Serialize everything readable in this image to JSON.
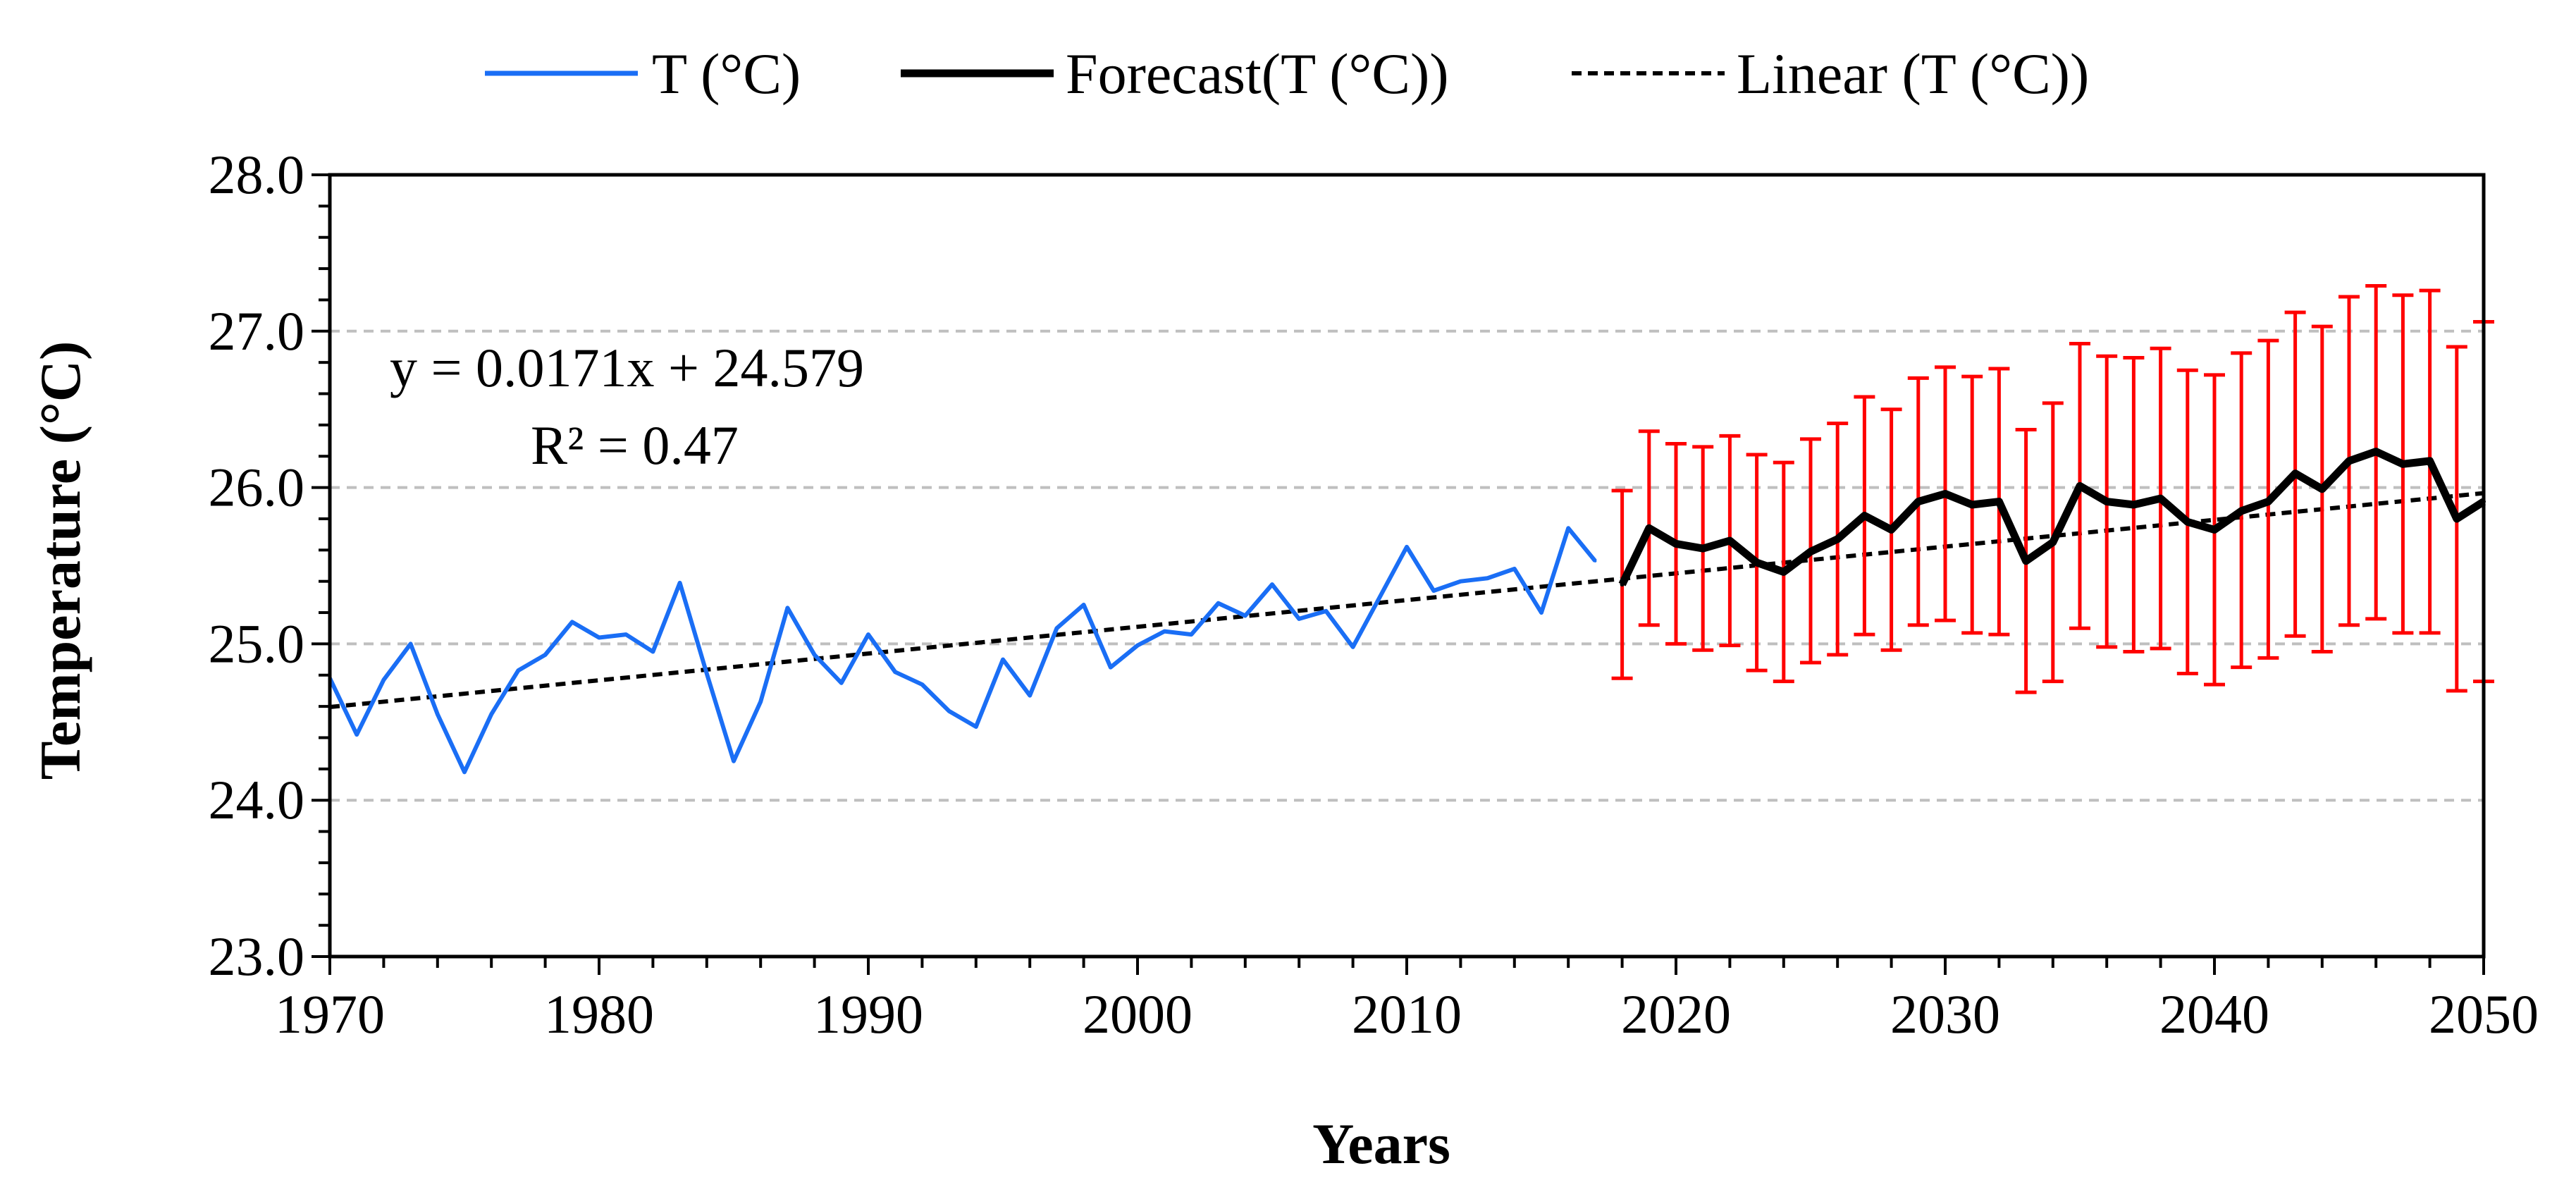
{
  "chart_data": {
    "type": "line",
    "title": "",
    "xlabel": "Years",
    "ylabel": "Temperature  (°C)",
    "xlim": [
      1970,
      2050
    ],
    "ylim": [
      23.0,
      28.0
    ],
    "x_ticks": [
      1970,
      1980,
      1990,
      2000,
      2010,
      2020,
      2030,
      2040,
      2050
    ],
    "x_tick_labels": [
      "1970",
      "1980",
      "1990",
      "2000",
      "2010",
      "2020",
      "2030",
      "2040",
      "2050"
    ],
    "y_ticks": [
      23.0,
      24.0,
      25.0,
      26.0,
      27.0,
      28.0
    ],
    "y_tick_labels": [
      "23.0",
      "24.0",
      "25.0",
      "26.0",
      "27.0",
      "28.0"
    ],
    "gridlines_y": [
      24.0,
      25.0,
      26.0,
      27.0
    ],
    "legend": {
      "position": "top-center",
      "entries": [
        "T (°C)",
        "Forecast(T (°C))",
        "Linear (T (°C))"
      ]
    },
    "annotations": {
      "equation": "y = 0.0171x + 24.579",
      "r_squared": "R² = 0.47"
    },
    "colors": {
      "observed": "#1a6ef5",
      "forecast": "#000000",
      "trend": "#000000",
      "error_bars": "#ff0000",
      "grid": "#bfbfbf"
    },
    "series": [
      {
        "name": "T (°C)",
        "style": "solid-blue",
        "x": [
          1970,
          1971,
          1972,
          1973,
          1974,
          1975,
          1976,
          1977,
          1978,
          1979,
          1980,
          1981,
          1982,
          1983,
          1984,
          1985,
          1986,
          1987,
          1988,
          1989,
          1990,
          1991,
          1992,
          1993,
          1994,
          1995,
          1996,
          1997,
          1998,
          1999,
          2000,
          2001,
          2002,
          2003,
          2004,
          2005,
          2006,
          2007,
          2008,
          2009,
          2010,
          2011,
          2012,
          2013,
          2014,
          2015,
          2016,
          2017
        ],
        "values": [
          24.78,
          24.42,
          24.77,
          25.0,
          24.55,
          24.18,
          24.55,
          24.83,
          24.93,
          25.14,
          25.04,
          25.06,
          24.95,
          25.39,
          24.81,
          24.25,
          24.63,
          25.23,
          24.93,
          24.75,
          25.06,
          24.82,
          24.74,
          24.57,
          24.47,
          24.9,
          24.67,
          25.1,
          25.25,
          24.85,
          24.99,
          25.08,
          25.06,
          25.26,
          25.18,
          25.38,
          25.16,
          25.21,
          24.98,
          25.3,
          25.62,
          25.34,
          25.4,
          25.42,
          25.48,
          25.2,
          25.74,
          25.53
        ]
      },
      {
        "name": "Forecast(T (°C))",
        "style": "solid-black-thick",
        "x": [
          2018,
          2019,
          2020,
          2021,
          2022,
          2023,
          2024,
          2025,
          2026,
          2027,
          2028,
          2029,
          2030,
          2031,
          2032,
          2033,
          2034,
          2035,
          2036,
          2037,
          2038,
          2039,
          2040,
          2041,
          2042,
          2043,
          2044,
          2045,
          2046,
          2047,
          2048,
          2049,
          2050
        ],
        "values": [
          25.38,
          25.74,
          25.64,
          25.61,
          25.66,
          25.52,
          25.46,
          25.59,
          25.67,
          25.82,
          25.73,
          25.91,
          25.96,
          25.89,
          25.91,
          25.53,
          25.65,
          26.01,
          25.91,
          25.89,
          25.93,
          25.78,
          25.73,
          25.85,
          25.91,
          26.09,
          25.99,
          26.17,
          26.23,
          26.15,
          26.17,
          25.8,
          25.91
        ],
        "error_bar_lower": [
          24.78,
          25.12,
          25.0,
          24.96,
          24.99,
          24.83,
          24.76,
          24.88,
          24.93,
          25.06,
          24.96,
          25.12,
          25.15,
          25.07,
          25.06,
          24.69,
          24.76,
          25.1,
          24.98,
          24.95,
          24.97,
          24.81,
          24.74,
          24.85,
          24.91,
          25.05,
          24.95,
          25.12,
          25.16,
          25.07,
          25.07,
          24.7,
          24.76
        ],
        "error_bar_upper": [
          25.98,
          26.36,
          26.28,
          26.26,
          26.33,
          26.21,
          26.16,
          26.31,
          26.41,
          26.58,
          26.5,
          26.7,
          26.77,
          26.71,
          26.76,
          26.37,
          26.54,
          26.92,
          26.84,
          26.83,
          26.89,
          26.75,
          26.72,
          26.86,
          26.94,
          27.12,
          27.03,
          27.22,
          27.29,
          27.23,
          27.26,
          26.9,
          27.06
        ]
      },
      {
        "name": "Linear (T (°C))",
        "style": "dashed-black",
        "x": [
          1970,
          2050
        ],
        "values": [
          24.596,
          25.964
        ]
      }
    ]
  }
}
